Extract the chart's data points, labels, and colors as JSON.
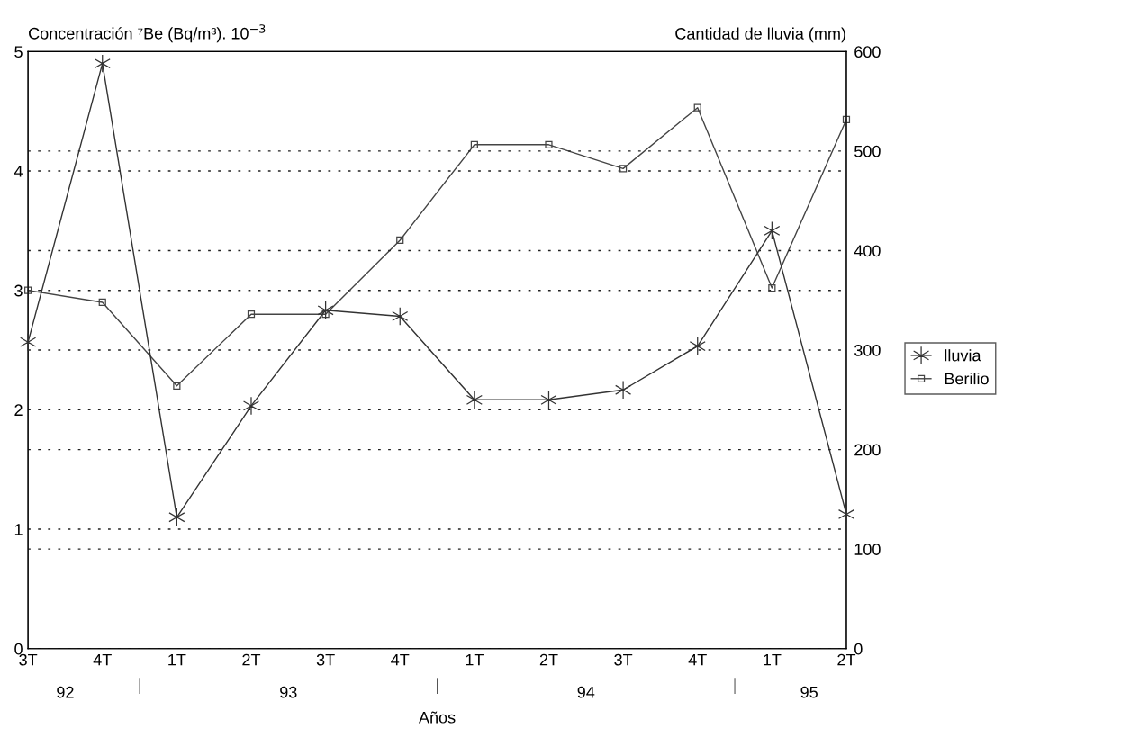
{
  "chart_data": {
    "type": "line",
    "ylabel": "Concentración ⁷Be (Bq/m³). 10$^{−3}$",
    "y2label": "Cantidad de lluvia (mm)",
    "xlabel": "Años",
    "categories": [
      "3T",
      "4T",
      "1T",
      "2T",
      "3T",
      "4T",
      "1T",
      "2T",
      "3T",
      "4T",
      "1T",
      "2T"
    ],
    "series": [
      {
        "name": "lluvia",
        "color": "#333333",
        "axis": "y2",
        "marker": "cross",
        "values": [
          308,
          588,
          132,
          244,
          340,
          334,
          250,
          250,
          260,
          304,
          420,
          135
        ]
      },
      {
        "name": "Berilio",
        "color": "#444444",
        "marker": "square",
        "values": [
          3.0,
          2.9,
          2.2,
          2.8,
          2.8,
          3.42,
          4.22,
          4.22,
          4.02,
          4.53,
          3.02,
          4.43
        ]
      }
    ],
    "ylim": [
      0,
      5
    ],
    "yticks": [
      0,
      1,
      2,
      3,
      4,
      5
    ],
    "y2lim": [
      0,
      600
    ],
    "y2ticks": [
      0,
      100,
      200,
      300,
      400,
      500,
      600
    ],
    "annotations": [
      "92",
      "93",
      "94",
      "95"
    ],
    "grid": true,
    "legend": "right",
    "line_style": "solid"
  }
}
